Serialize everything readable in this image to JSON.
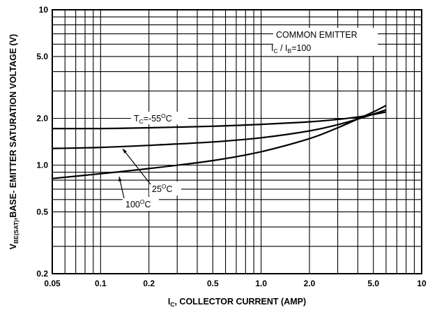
{
  "chart_data": {
    "type": "line",
    "title": "",
    "xscale": "log",
    "yscale": "log",
    "xlim": [
      0.05,
      10
    ],
    "ylim": [
      0.2,
      10
    ],
    "grid": true,
    "xticks": [
      {
        "value": 0.05,
        "label": "0.05"
      },
      {
        "value": 0.1,
        "label": "0.1"
      },
      {
        "value": 0.2,
        "label": "0.2"
      },
      {
        "value": 0.5,
        "label": "0.5"
      },
      {
        "value": 1,
        "label": "1.0"
      },
      {
        "value": 2,
        "label": "2.0"
      },
      {
        "value": 5,
        "label": "5.0"
      },
      {
        "value": 10,
        "label": "10"
      }
    ],
    "yticks": [
      {
        "value": 0.2,
        "label": "0.2"
      },
      {
        "value": 0.5,
        "label": "0.5"
      },
      {
        "value": 1,
        "label": "1.0"
      },
      {
        "value": 2,
        "label": "2.0"
      },
      {
        "value": 5,
        "label": "5.0"
      },
      {
        "value": 10,
        "label": "10"
      }
    ],
    "xlabel": {
      "main": "I",
      "sub": "C",
      "rest": ", COLLECTOR CURRENT (AMP)"
    },
    "ylabel": {
      "main": "V",
      "sub": "BE(SAT)",
      "rest": ",BASE- EMITTER SATURATION VOLTAGE (V)"
    },
    "annotation": {
      "line1": "COMMON EMITTER",
      "line2": {
        "a": "I",
        "asub": "C",
        "mid": " / I",
        "bsub": "B",
        "rest": "=100"
      }
    },
    "series": [
      {
        "name": {
          "pre": "T",
          "sub": "C",
          "mid": "=-55",
          "sup": "O",
          "post": "C"
        },
        "x": [
          0.05,
          0.1,
          0.2,
          0.5,
          1,
          2,
          3,
          4,
          5,
          6
        ],
        "y": [
          1.72,
          1.72,
          1.74,
          1.78,
          1.83,
          1.9,
          1.97,
          2.04,
          2.12,
          2.2
        ]
      },
      {
        "name": {
          "pre": "",
          "sub": "",
          "mid": "25",
          "sup": "O",
          "post": "C"
        },
        "x": [
          0.05,
          0.1,
          0.2,
          0.5,
          1,
          2,
          3,
          4,
          5,
          6
        ],
        "y": [
          1.28,
          1.3,
          1.34,
          1.41,
          1.5,
          1.66,
          1.82,
          1.98,
          2.13,
          2.27
        ]
      },
      {
        "name": {
          "pre": "",
          "sub": "",
          "mid": "100",
          "sup": "O",
          "post": "C"
        },
        "x": [
          0.05,
          0.1,
          0.2,
          0.5,
          1,
          2,
          3,
          4,
          5,
          6
        ],
        "y": [
          0.82,
          0.88,
          0.95,
          1.07,
          1.22,
          1.48,
          1.74,
          1.98,
          2.2,
          2.42
        ]
      }
    ]
  }
}
